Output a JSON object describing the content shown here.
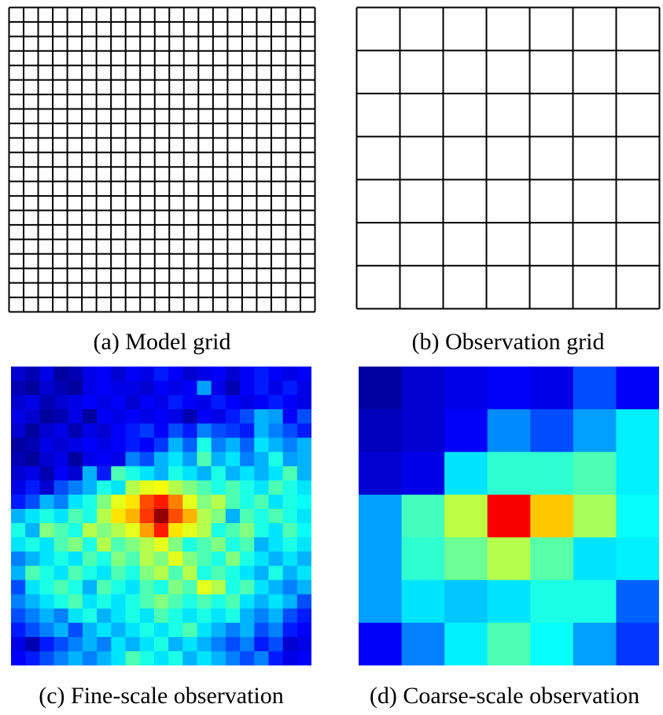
{
  "panels": [
    {
      "id": "a",
      "caption": "(a) Model grid",
      "kind": "grid",
      "rows": 21,
      "cols": 21
    },
    {
      "id": "b",
      "caption": "(b) Observation grid",
      "kind": "grid",
      "rows": 7,
      "cols": 7
    },
    {
      "id": "c",
      "caption": "(c) Fine-scale observation",
      "kind": "heatmap",
      "rows": 21,
      "cols": 21
    },
    {
      "id": "d",
      "caption": "(d) Coarse-scale observation",
      "kind": "heatmap",
      "rows": 7,
      "cols": 7
    }
  ],
  "colors": {
    "line": "#000000",
    "background": "#ffffff",
    "colormap": "jet"
  },
  "fine_heatmap_values": [
    [
      0.08,
      0.05,
      0.1,
      0.03,
      0.05,
      0.1,
      0.12,
      0.08,
      0.12,
      0.1,
      0.15,
      0.12,
      0.08,
      0.1,
      0.12,
      0.08,
      0.12,
      0.15,
      0.12,
      0.1,
      0.12
    ],
    [
      0.05,
      0.03,
      0.08,
      0.05,
      0.03,
      0.1,
      0.12,
      0.1,
      0.1,
      0.08,
      0.12,
      0.1,
      0.12,
      0.28,
      0.1,
      0.05,
      0.12,
      0.15,
      0.1,
      0.15,
      0.1
    ],
    [
      0.08,
      0.1,
      0.05,
      0.08,
      0.1,
      0.12,
      0.1,
      0.12,
      0.08,
      0.12,
      0.1,
      0.15,
      0.12,
      0.1,
      0.15,
      0.12,
      0.1,
      0.12,
      0.15,
      0.12,
      0.1
    ],
    [
      0.1,
      0.08,
      0.03,
      0.05,
      0.1,
      0.03,
      0.12,
      0.1,
      0.12,
      0.1,
      0.12,
      0.1,
      0.05,
      0.12,
      0.1,
      0.15,
      0.2,
      0.3,
      0.28,
      0.12,
      0.2
    ],
    [
      0.08,
      0.03,
      0.08,
      0.1,
      0.05,
      0.1,
      0.08,
      0.12,
      0.15,
      0.18,
      0.12,
      0.2,
      0.15,
      0.25,
      0.2,
      0.18,
      0.15,
      0.3,
      0.25,
      0.2,
      0.15
    ],
    [
      0.03,
      0.05,
      0.1,
      0.08,
      0.1,
      0.12,
      0.1,
      0.12,
      0.15,
      0.12,
      0.18,
      0.3,
      0.22,
      0.4,
      0.25,
      0.3,
      0.22,
      0.35,
      0.3,
      0.25,
      0.3
    ],
    [
      0.05,
      0.03,
      0.08,
      0.1,
      0.03,
      0.1,
      0.12,
      0.1,
      0.25,
      0.2,
      0.3,
      0.35,
      0.28,
      0.45,
      0.3,
      0.35,
      0.25,
      0.3,
      0.4,
      0.28,
      0.3
    ],
    [
      0.08,
      0.1,
      0.05,
      0.12,
      0.08,
      0.3,
      0.15,
      0.45,
      0.4,
      0.35,
      0.3,
      0.4,
      0.35,
      0.3,
      0.4,
      0.3,
      0.35,
      0.3,
      0.35,
      0.45,
      0.3
    ],
    [
      0.1,
      0.15,
      0.08,
      0.2,
      0.25,
      0.3,
      0.4,
      0.35,
      0.55,
      0.6,
      0.62,
      0.55,
      0.5,
      0.45,
      0.4,
      0.45,
      0.4,
      0.35,
      0.45,
      0.4,
      0.35
    ],
    [
      0.15,
      0.2,
      0.3,
      0.25,
      0.35,
      0.4,
      0.5,
      0.6,
      0.65,
      0.8,
      0.85,
      0.75,
      0.6,
      0.5,
      0.55,
      0.45,
      0.4,
      0.45,
      0.35,
      0.4,
      0.38
    ],
    [
      0.3,
      0.35,
      0.4,
      0.35,
      0.45,
      0.4,
      0.55,
      0.65,
      0.7,
      0.82,
      0.98,
      0.8,
      0.7,
      0.55,
      0.5,
      0.3,
      0.45,
      0.4,
      0.45,
      0.4,
      0.35
    ],
    [
      0.4,
      0.3,
      0.5,
      0.45,
      0.4,
      0.55,
      0.5,
      0.55,
      0.6,
      0.72,
      0.85,
      0.65,
      0.6,
      0.55,
      0.4,
      0.45,
      0.5,
      0.4,
      0.35,
      0.45,
      0.38
    ],
    [
      0.35,
      0.4,
      0.35,
      0.45,
      0.5,
      0.4,
      0.55,
      0.45,
      0.5,
      0.55,
      0.6,
      0.5,
      0.4,
      0.45,
      0.5,
      0.4,
      0.45,
      0.3,
      0.35,
      0.4,
      0.35
    ],
    [
      0.25,
      0.3,
      0.35,
      0.4,
      0.35,
      0.45,
      0.4,
      0.5,
      0.45,
      0.55,
      0.5,
      0.6,
      0.5,
      0.45,
      0.4,
      0.5,
      0.4,
      0.35,
      0.3,
      0.35,
      0.3
    ],
    [
      0.3,
      0.45,
      0.4,
      0.35,
      0.45,
      0.4,
      0.35,
      0.45,
      0.4,
      0.5,
      0.55,
      0.45,
      0.55,
      0.4,
      0.45,
      0.4,
      0.35,
      0.3,
      0.4,
      0.3,
      0.35
    ],
    [
      0.2,
      0.35,
      0.4,
      0.45,
      0.4,
      0.3,
      0.45,
      0.4,
      0.35,
      0.45,
      0.4,
      0.5,
      0.45,
      0.6,
      0.55,
      0.4,
      0.45,
      0.35,
      0.3,
      0.25,
      0.3
    ],
    [
      0.25,
      0.3,
      0.35,
      0.4,
      0.45,
      0.35,
      0.4,
      0.35,
      0.4,
      0.45,
      0.5,
      0.45,
      0.4,
      0.45,
      0.4,
      0.45,
      0.35,
      0.3,
      0.35,
      0.3,
      0.2
    ],
    [
      0.2,
      0.25,
      0.3,
      0.25,
      0.35,
      0.4,
      0.3,
      0.35,
      0.4,
      0.35,
      0.45,
      0.4,
      0.35,
      0.4,
      0.35,
      0.4,
      0.3,
      0.25,
      0.3,
      0.2,
      0.15
    ],
    [
      0.15,
      0.2,
      0.25,
      0.3,
      0.2,
      0.3,
      0.35,
      0.3,
      0.35,
      0.4,
      0.35,
      0.4,
      0.45,
      0.35,
      0.3,
      0.25,
      0.3,
      0.2,
      0.25,
      0.15,
      0.12
    ],
    [
      0.1,
      0.05,
      0.15,
      0.2,
      0.25,
      0.3,
      0.25,
      0.35,
      0.3,
      0.35,
      0.4,
      0.3,
      0.35,
      0.3,
      0.25,
      0.2,
      0.25,
      0.15,
      0.2,
      0.08,
      0.1
    ],
    [
      0.12,
      0.15,
      0.2,
      0.25,
      0.3,
      0.25,
      0.3,
      0.35,
      0.45,
      0.4,
      0.35,
      0.4,
      0.3,
      0.35,
      0.3,
      0.25,
      0.2,
      0.25,
      0.15,
      0.1,
      0.12
    ]
  ],
  "coarse_heatmap_values": [
    [
      0.03,
      0.08,
      0.1,
      0.12,
      0.1,
      0.2,
      0.12
    ],
    [
      0.06,
      0.08,
      0.12,
      0.26,
      0.2,
      0.28,
      0.36
    ],
    [
      0.08,
      0.1,
      0.35,
      0.42,
      0.42,
      0.45,
      0.36
    ],
    [
      0.28,
      0.44,
      0.56,
      0.88,
      0.68,
      0.54,
      0.38
    ],
    [
      0.28,
      0.42,
      0.48,
      0.55,
      0.46,
      0.35,
      0.36
    ],
    [
      0.28,
      0.35,
      0.32,
      0.35,
      0.4,
      0.4,
      0.22
    ],
    [
      0.12,
      0.25,
      0.36,
      0.45,
      0.38,
      0.28,
      0.18
    ]
  ]
}
